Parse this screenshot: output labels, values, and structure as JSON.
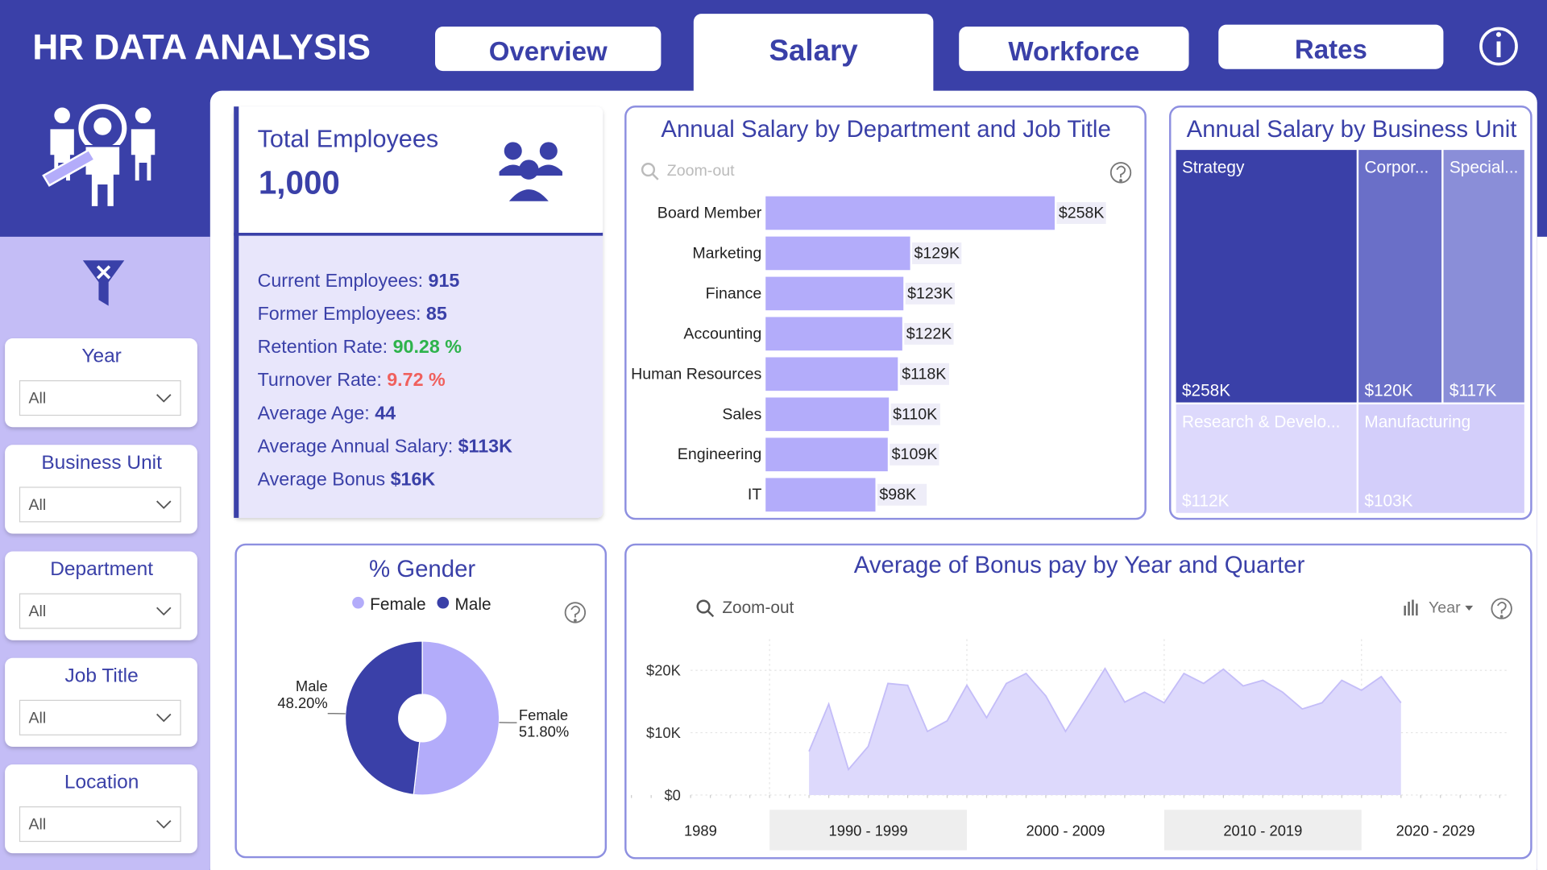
{
  "header": {
    "title": "HR DATA ANALYSIS",
    "tabs": [
      "Overview",
      "Salary",
      "Workforce",
      "Rates"
    ],
    "active_tab": "Salary"
  },
  "filters": [
    {
      "label": "Year",
      "value": "All"
    },
    {
      "label": "Business Unit",
      "value": "All"
    },
    {
      "label": "Department",
      "value": "All"
    },
    {
      "label": "Job Title",
      "value": "All"
    },
    {
      "label": "Location",
      "value": "All"
    }
  ],
  "summary": {
    "title": "Total Employees",
    "total": "1,000",
    "stats": [
      {
        "label": "Current Employees:",
        "value": "915"
      },
      {
        "label": "Former Employees:",
        "value": "85"
      },
      {
        "label": "Retention Rate:",
        "value": "90.28 %",
        "color": "#2eb34c"
      },
      {
        "label": "Turnover Rate:",
        "value": "9.72 %",
        "color": "#f0605d"
      },
      {
        "label": "Average Age:",
        "value": "44"
      },
      {
        "label": "Average Annual Salary:",
        "value": "$113K"
      },
      {
        "label": "Average Bonus",
        "value": "$16K"
      }
    ]
  },
  "chart_data": [
    {
      "type": "bar",
      "orientation": "horizontal",
      "title": "Annual Salary by Department and Job Title",
      "zoom_label": "Zoom-out",
      "categories": [
        "Board Member",
        "Marketing",
        "Finance",
        "Accounting",
        "Human Resources",
        "Sales",
        "Engineering",
        "IT"
      ],
      "values": [
        258000,
        129000,
        123000,
        122000,
        118000,
        110000,
        109000,
        98000
      ],
      "value_labels": [
        "$258K",
        "$129K",
        "$123K",
        "$122K",
        "$118K",
        "$110K",
        "$109K",
        "$98K"
      ],
      "color": "#b3acfa"
    },
    {
      "type": "treemap",
      "title": "Annual Salary by Business Unit",
      "categories": [
        "Strategy",
        "Corpor...",
        "Special...",
        "Research & Develo...",
        "Manufacturing"
      ],
      "values": [
        258000,
        120000,
        117000,
        112000,
        103000
      ],
      "value_labels": [
        "$258K",
        "$120K",
        "$117K",
        "$112K",
        "$103K"
      ],
      "colors": [
        "#3a40a8",
        "#6a6fc8",
        "#8a8ed8",
        "#ddd9fc",
        "#d3cefa"
      ]
    },
    {
      "type": "donut",
      "title": "% Gender",
      "categories": [
        "Female",
        "Male"
      ],
      "values": [
        51.8,
        48.2
      ],
      "value_labels": [
        "51.80%",
        "48.20%"
      ],
      "colors": [
        "#b3acfa",
        "#3a40a8"
      ],
      "legend": "top"
    },
    {
      "type": "area",
      "title": "Average of Bonus pay by Year and Quarter",
      "zoom_label": "Zoom-out",
      "drill_label": "Year",
      "x": [
        1992,
        1993,
        1994,
        1995,
        1996,
        1997,
        1998,
        1999,
        2000,
        2001,
        2002,
        2003,
        2004,
        2005,
        2006,
        2007,
        2008,
        2009,
        2010,
        2011,
        2012,
        2013,
        2014,
        2015,
        2016,
        2017,
        2018,
        2019,
        2020,
        2021,
        2022
      ],
      "values": [
        7000,
        14600,
        4100,
        7800,
        17900,
        17600,
        10200,
        11900,
        17600,
        12400,
        17900,
        19500,
        15900,
        10200,
        15200,
        20300,
        14900,
        16500,
        14800,
        19500,
        17900,
        20200,
        17500,
        18400,
        16500,
        13800,
        14800,
        18400,
        16800,
        19000,
        14800
      ],
      "color": "#ddd9fc",
      "line_color": "#c4bdf8",
      "xlim": [
        1983,
        2027.5
      ],
      "ylim": [
        0,
        25000
      ],
      "yticks": [
        {
          "value": 0,
          "label": "$0"
        },
        {
          "value": 10000,
          "label": "$10K"
        },
        {
          "value": 20000,
          "label": "$20K"
        }
      ],
      "x_groups": [
        {
          "label": "1989",
          "start": 1983,
          "end": 1990
        },
        {
          "label": "1990 - 1999",
          "start": 1990,
          "end": 2000
        },
        {
          "label": "2000 - 2009",
          "start": 2000,
          "end": 2010
        },
        {
          "label": "2010 - 2019",
          "start": 2010,
          "end": 2020
        },
        {
          "label": "2020 - 2029",
          "start": 2020,
          "end": 2027.5
        }
      ]
    }
  ]
}
